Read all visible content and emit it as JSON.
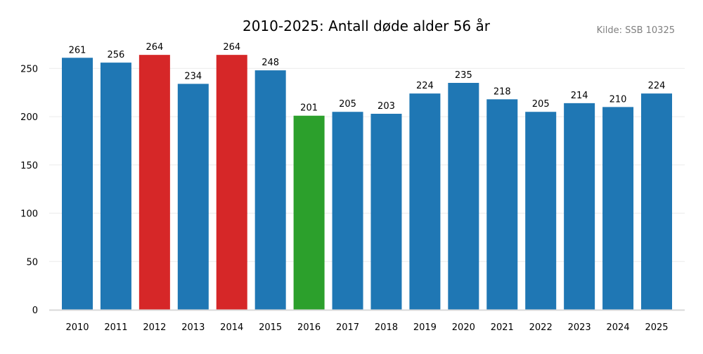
{
  "chart_data": {
    "type": "bar",
    "title": "2010-2025: Antall døde alder 56 år",
    "source": "Kilde: SSB 10325",
    "xlabel": "",
    "ylabel": "",
    "categories": [
      "2010",
      "2011",
      "2012",
      "2013",
      "2014",
      "2015",
      "2016",
      "2017",
      "2018",
      "2019",
      "2020",
      "2021",
      "2022",
      "2023",
      "2024",
      "2025"
    ],
    "values": [
      261,
      256,
      264,
      234,
      264,
      248,
      201,
      205,
      203,
      224,
      235,
      218,
      205,
      214,
      210,
      224
    ],
    "bar_colors": [
      "#1f77b4",
      "#1f77b4",
      "#d62728",
      "#1f77b4",
      "#d62728",
      "#1f77b4",
      "#2ca02c",
      "#1f77b4",
      "#1f77b4",
      "#1f77b4",
      "#1f77b4",
      "#1f77b4",
      "#1f77b4",
      "#1f77b4",
      "#1f77b4",
      "#1f77b4"
    ],
    "ylim": [
      0,
      277.2
    ],
    "yticks": [
      0,
      50,
      100,
      150,
      200,
      250
    ],
    "grid": true,
    "data_labels": true
  }
}
